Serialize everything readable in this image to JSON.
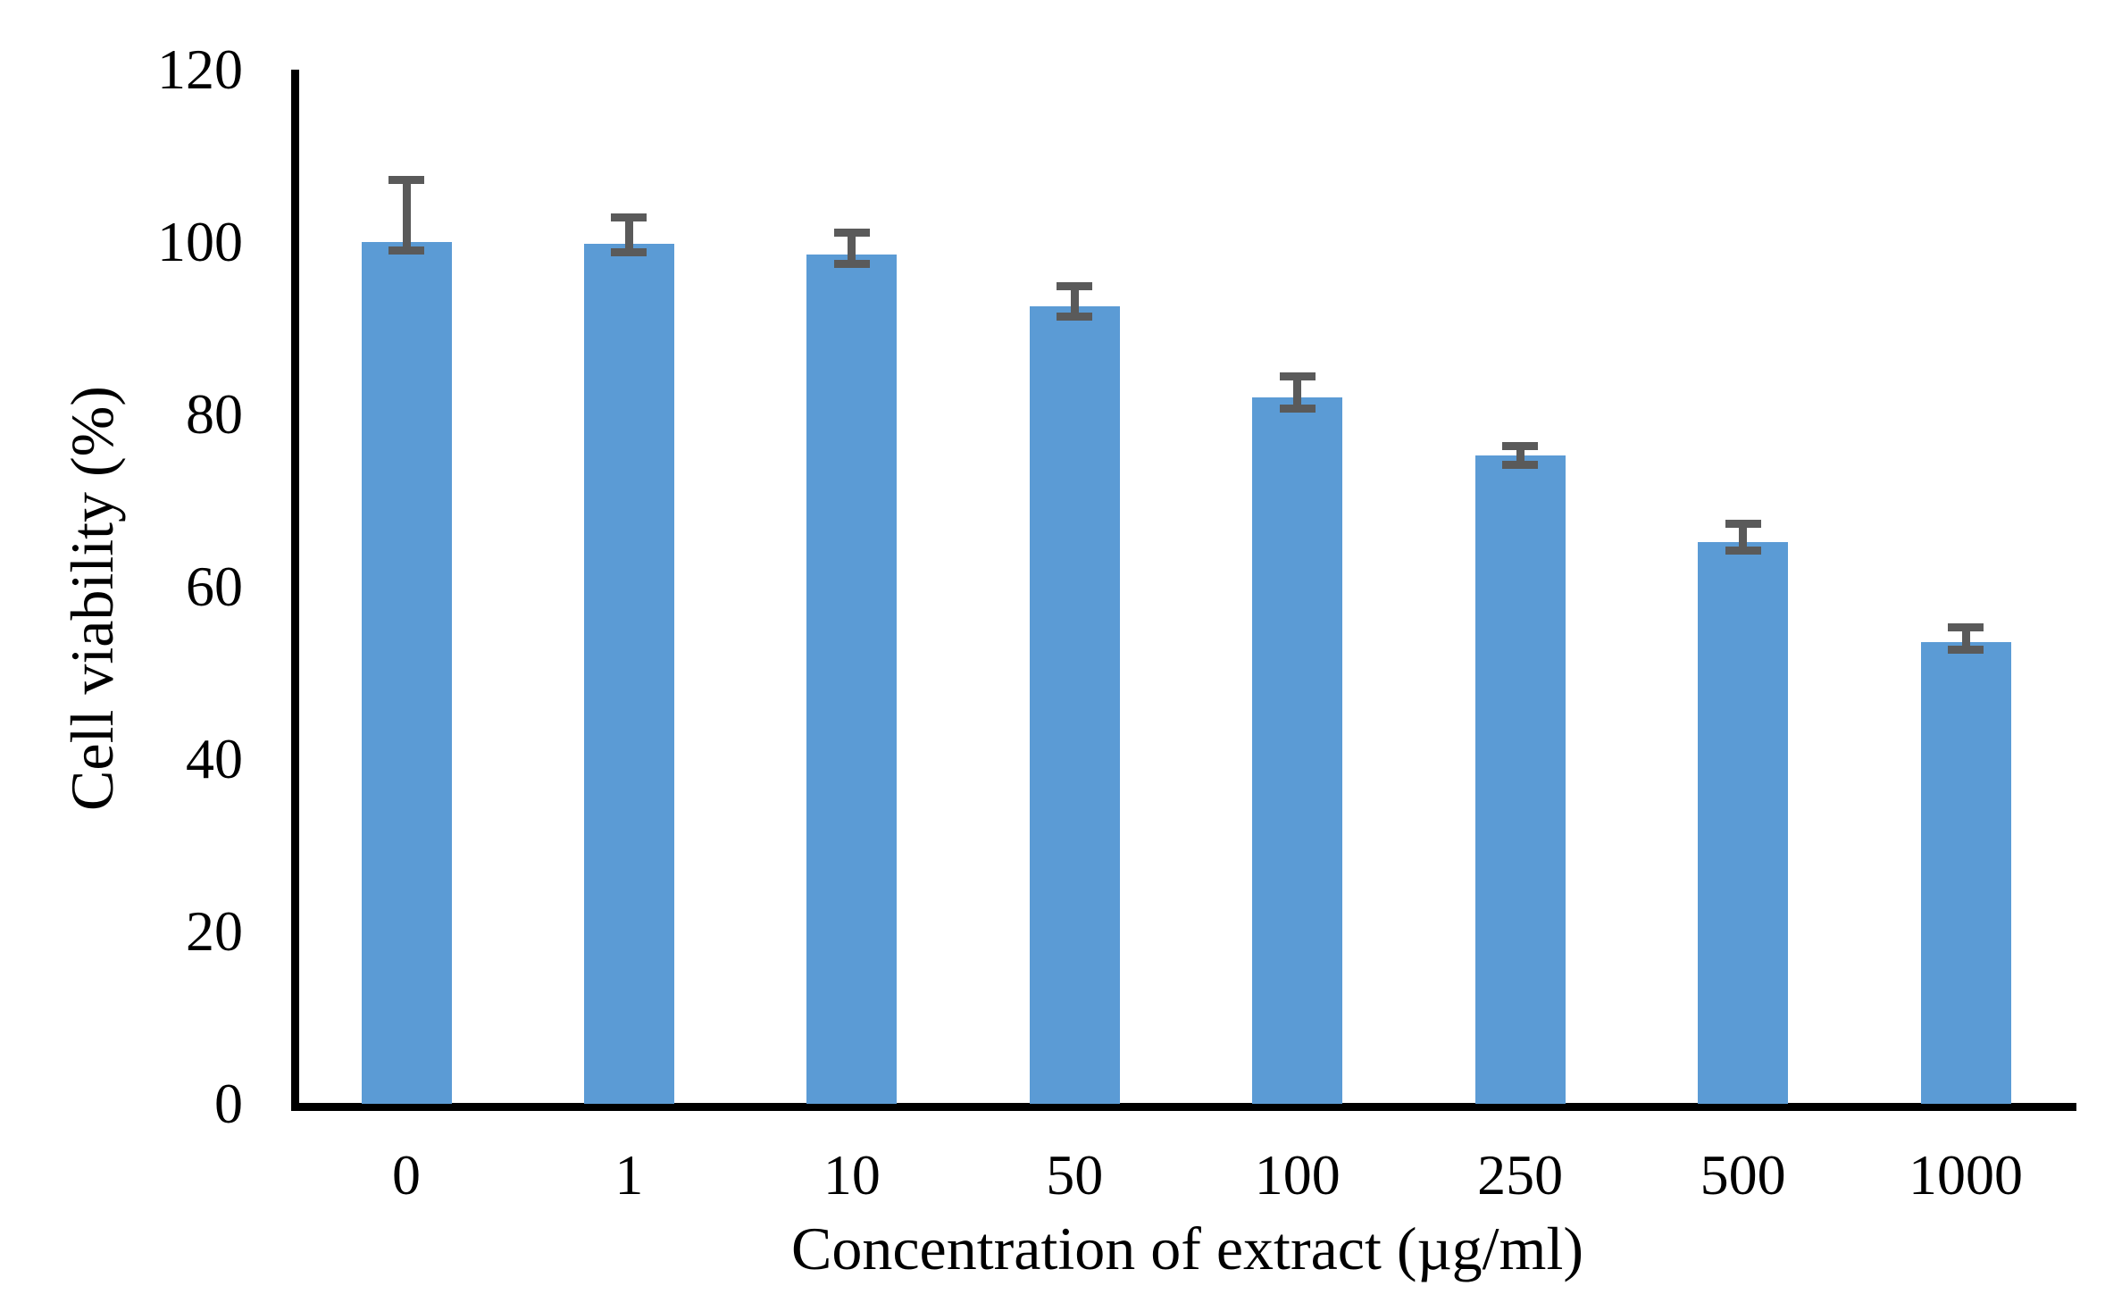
{
  "figure": {
    "background": "#ffffff"
  },
  "chart_data": {
    "type": "bar",
    "title": "",
    "xlabel": "Concentration of extract (µg/ml)",
    "ylabel": "Cell viability (%)",
    "categories": [
      "0",
      "1",
      "10",
      "50",
      "100",
      "250",
      "500",
      "1000"
    ],
    "values": [
      100,
      99.8,
      98.6,
      92.5,
      82,
      75.2,
      65.2,
      53.6
    ],
    "error_bars": {
      "whisker_top": [
        107.2,
        102.9,
        101.1,
        94.9,
        84.4,
        76.3,
        67.3,
        55.3
      ],
      "whisker_bottom": [
        99.0,
        98.8,
        97.5,
        91.3,
        80.7,
        74.1,
        64.2,
        52.7
      ]
    },
    "ylim": [
      0,
      120
    ],
    "yticks": [
      0,
      20,
      40,
      60,
      80,
      100,
      120
    ],
    "grid": false,
    "legend": null,
    "bar_color": "#5B9BD5",
    "error_color": "#5A5A5A",
    "axis_color": "#000000"
  }
}
